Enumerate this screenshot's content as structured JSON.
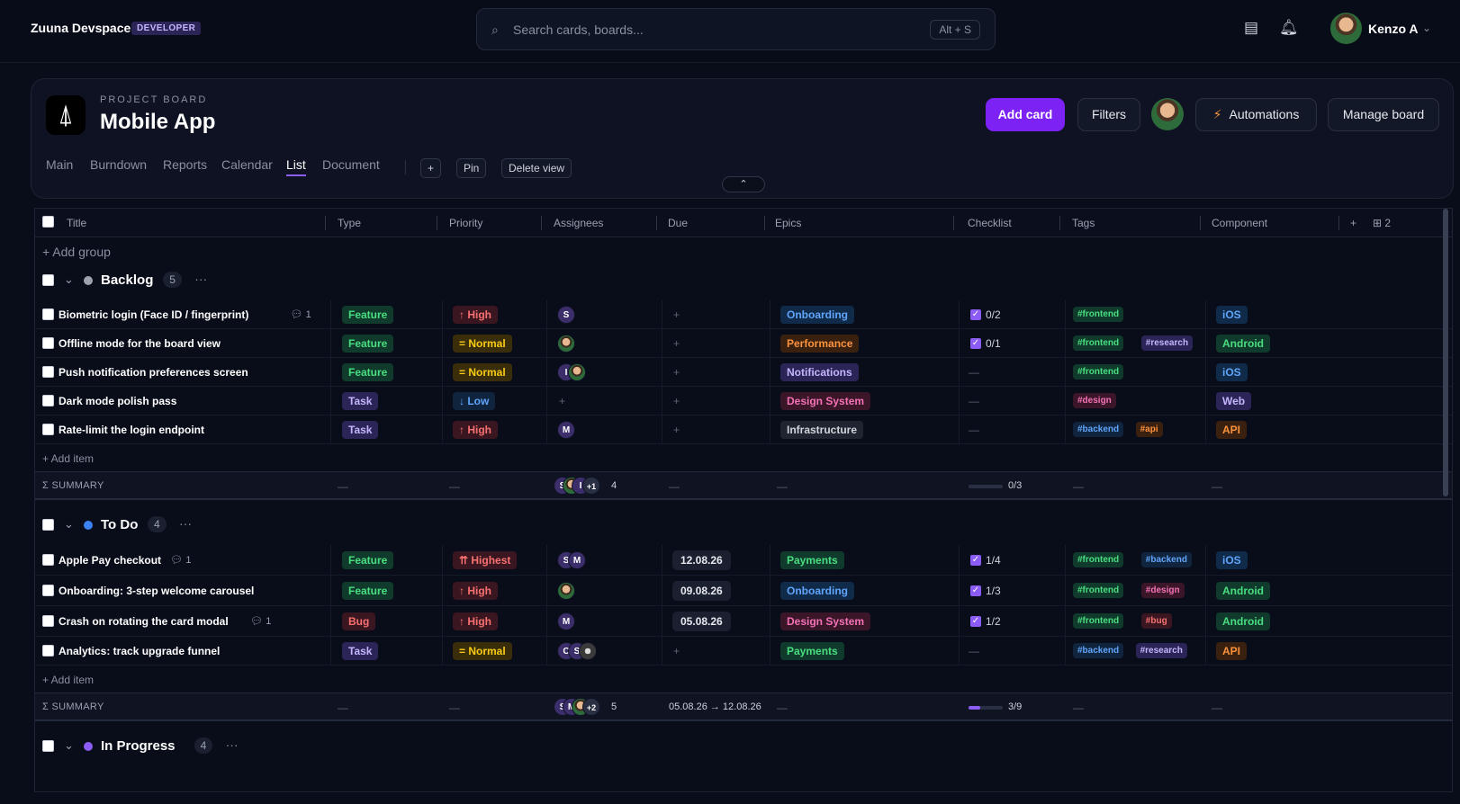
{
  "app": {
    "name": "Zuuna Devspace",
    "badge": "DEVELOPER"
  },
  "search": {
    "placeholder": "Search cards, boards...",
    "shortcut": "Alt + S"
  },
  "user": {
    "name": "Kenzo A"
  },
  "board": {
    "kicker": "PROJECT BOARD",
    "title": "Mobile App",
    "tabs": [
      "Main",
      "Burndown",
      "Reports",
      "Calendar",
      "List",
      "Document"
    ],
    "active_tab": "List",
    "add_view": "+",
    "pin": "Pin",
    "delete_view": "Delete view",
    "add_card": "Add card",
    "filters": "Filters",
    "automations": "Automations",
    "manage": "Manage board"
  },
  "table": {
    "columns": [
      "Title",
      "Type",
      "Priority",
      "Assignees",
      "Due",
      "Epics",
      "Checklist",
      "Tags",
      "Component"
    ],
    "add_column": "+",
    "column_count": "2",
    "add_group": "+ Add group",
    "add_item": "+ Add item",
    "summary_label": "Σ SUMMARY",
    "dash": "—",
    "plus": "+"
  },
  "groups": [
    {
      "name": "Backlog",
      "count": "5",
      "color": "#9ca3af",
      "rows": [
        {
          "title": "Biometric login (Face ID / fingerprint)",
          "comments": "1",
          "type": "Feature",
          "priority": "↑ High",
          "assignees": [
            "S"
          ],
          "due": "",
          "epic": "Onboarding",
          "checklist": "0/2",
          "tags": [
            "#frontend"
          ],
          "component": "iOS"
        },
        {
          "title": "Offline mode for the board view",
          "comments": "",
          "type": "Feature",
          "priority": "= Normal",
          "assignees": [
            "face"
          ],
          "due": "",
          "epic": "Performance",
          "checklist": "0/1",
          "tags": [
            "#frontend",
            "#research"
          ],
          "component": "Android"
        },
        {
          "title": "Push notification preferences screen",
          "comments": "",
          "type": "Feature",
          "priority": "= Normal",
          "assignees": [
            "I",
            "face"
          ],
          "due": "",
          "epic": "Notifications",
          "checklist": "",
          "tags": [
            "#frontend"
          ],
          "component": "iOS"
        },
        {
          "title": "Dark mode polish pass",
          "comments": "",
          "type": "Task",
          "priority": "↓ Low",
          "assignees": [],
          "due": "",
          "epic": "Design System",
          "checklist": "",
          "tags": [
            "#design"
          ],
          "component": "Web"
        },
        {
          "title": "Rate-limit the login endpoint",
          "comments": "",
          "type": "Task",
          "priority": "↑ High",
          "assignees": [
            "M"
          ],
          "due": "",
          "epic": "Infrastructure",
          "checklist": "",
          "tags": [
            "#backend",
            "#api"
          ],
          "component": "API"
        }
      ],
      "summary": {
        "assignees": [
          "S",
          "face",
          "I"
        ],
        "more": "+1",
        "assignee_count": "4",
        "due": "",
        "checklist": "0/3",
        "progress": 0
      }
    },
    {
      "name": "To Do",
      "count": "4",
      "color": "#3b82f6",
      "rows": [
        {
          "title": "Apple Pay checkout",
          "comments": "1",
          "type": "Feature",
          "priority": "⇈ Highest",
          "assignees": [
            "S",
            "M"
          ],
          "due": "12.08.26",
          "epic": "Payments",
          "checklist": "1/4",
          "tags": [
            "#frontend",
            "#backend"
          ],
          "component": "iOS"
        },
        {
          "title": "Onboarding: 3-step welcome carousel",
          "comments": "",
          "type": "Feature",
          "priority": "↑ High",
          "assignees": [
            "face"
          ],
          "due": "09.08.26",
          "epic": "Onboarding",
          "checklist": "1/3",
          "tags": [
            "#frontend",
            "#design"
          ],
          "component": "Android"
        },
        {
          "title": "Crash on rotating the card modal",
          "comments": "1",
          "type": "Bug",
          "priority": "↑ High",
          "assignees": [
            "M"
          ],
          "due": "05.08.26",
          "epic": "Design System",
          "checklist": "1/2",
          "tags": [
            "#frontend",
            "#bug"
          ],
          "component": "Android"
        },
        {
          "title": "Analytics: track upgrade funnel",
          "comments": "",
          "type": "Task",
          "priority": "= Normal",
          "assignees": [
            "C",
            "S",
            "dark"
          ],
          "due": "",
          "epic": "Payments",
          "checklist": "",
          "tags": [
            "#backend",
            "#research"
          ],
          "component": "API"
        }
      ],
      "summary": {
        "assignees": [
          "S",
          "M",
          "face"
        ],
        "more": "+2",
        "assignee_count": "5",
        "due": "05.08.26 → 12.08.26",
        "checklist": "3/9",
        "progress": 0.33
      }
    },
    {
      "name": "In Progress",
      "count": "4",
      "color": "#8b5cf6",
      "rows": []
    }
  ],
  "colors": {
    "type": {
      "Feature": [
        "#0f3a2c",
        "#4ade80"
      ],
      "Task": [
        "#2b2456",
        "#c4b5fd"
      ],
      "Bug": [
        "#3a1620",
        "#f87171"
      ]
    },
    "priority": {
      "↑ High": [
        "#3a1620",
        "#f87171"
      ],
      "= Normal": [
        "#3a2e0a",
        "#facc15"
      ],
      "↓ Low": [
        "#10243e",
        "#60a5fa"
      ],
      "⇈ Highest": [
        "#3a1620",
        "#f87171"
      ]
    },
    "epic": {
      "Onboarding": [
        "#102a4a",
        "#60a5fa"
      ],
      "Performance": [
        "#3a200f",
        "#fb923c"
      ],
      "Notifications": [
        "#2b2456",
        "#c4b5fd"
      ],
      "Design System": [
        "#3a1628",
        "#f472b6"
      ],
      "Infrastructure": [
        "#1f2431",
        "#d1d5db"
      ],
      "Payments": [
        "#0f3a2c",
        "#4ade80"
      ]
    },
    "tag": {
      "#frontend": [
        "#0f3a2c",
        "#4ade80"
      ],
      "#research": [
        "#2b2456",
        "#c4b5fd"
      ],
      "#design": [
        "#3a1628",
        "#f472b6"
      ],
      "#backend": [
        "#10243e",
        "#60a5fa"
      ],
      "#api": [
        "#3a200f",
        "#fb923c"
      ],
      "#bug": [
        "#3a1620",
        "#f87171"
      ]
    },
    "component": {
      "iOS": [
        "#102a4a",
        "#60a5fa"
      ],
      "Android": [
        "#0f3a2c",
        "#4ade80"
      ],
      "Web": [
        "#2b2456",
        "#c4b5fd"
      ],
      "API": [
        "#3a200f",
        "#fb923c"
      ]
    }
  }
}
